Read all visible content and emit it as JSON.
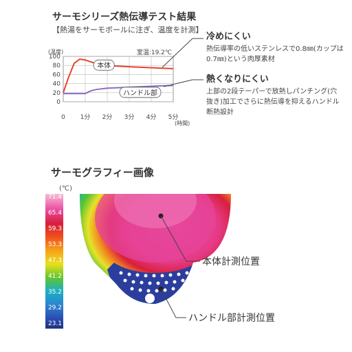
{
  "header": {
    "title": "サーモシリーズ熱伝導テスト結果",
    "subtitle": "【熱湯をサーモボールに注ぎ、温度を計測】"
  },
  "chart_data": {
    "type": "line",
    "ylabel": "(温度)",
    "xlabel": "(時間)",
    "room_temp_label": "室温:19.2℃",
    "ylim": [
      0,
      100
    ],
    "xlim": [
      0,
      5
    ],
    "y_ticks": [
      "0",
      "20",
      "40",
      "60",
      "80",
      "100"
    ],
    "x_ticks": [
      "0",
      "1分",
      "2分",
      "3分",
      "4分",
      "5分"
    ],
    "series": [
      {
        "name": "本体",
        "color": "#e8432e",
        "x": [
          0,
          0.25,
          0.5,
          0.75,
          1.0,
          1.5,
          2.0,
          3.0,
          4.0,
          5.0
        ],
        "y": [
          20,
          55,
          85,
          94,
          92,
          84,
          80,
          77,
          75,
          73
        ]
      },
      {
        "name": "ハンドル部",
        "color": "#8a6fc0",
        "x": [
          0,
          0.5,
          1.0,
          1.25,
          1.5,
          2.0,
          3.0,
          4.0,
          5.0
        ],
        "y": [
          18,
          18,
          18,
          24,
          27,
          30,
          32,
          34,
          36
        ]
      }
    ],
    "grid": true
  },
  "callouts": {
    "cool": {
      "head": "冷めにくい",
      "body": "熱伝導率の低いステンレスで0.8㎜(カップは0.7㎜)という肉厚素材"
    },
    "hot": {
      "head": "熱くなりにくい",
      "body": "上部の2段テーパーで放熱しパンチング(穴抜き)加工でさらに熱伝導を抑えるハンドル断熱設計"
    }
  },
  "thermography": {
    "title": "サーモグラフィー画像",
    "unit": "(℃)",
    "scale_values": [
      "71.4",
      "65.4",
      "59.3",
      "53.3",
      "47.3",
      "41.2",
      "35.2",
      "29.2",
      "23.1"
    ],
    "body_label": "本体計測位置",
    "handle_label": "ハンドル部計測位置"
  },
  "colors": {
    "body_line": "#e8432e",
    "handle_line": "#8a6fc0",
    "grid": "#bbbbbb"
  }
}
